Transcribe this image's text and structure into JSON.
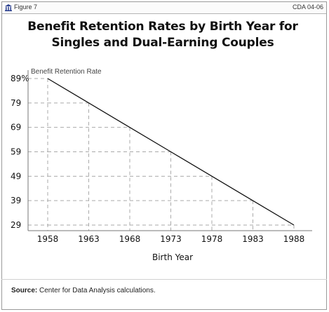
{
  "header": {
    "figure_label": "Figure 7",
    "doc_code": "CDA 04-06"
  },
  "title_line1": "Benefit Retention Rates by Birth Year for",
  "title_line2": "Singles and Dual-Earning Couples",
  "source": {
    "label": "Source:",
    "text": "Center for Data Analysis calculations."
  },
  "chart_data": {
    "type": "line",
    "title": "Benefit Retention Rates by Birth Year for Singles and Dual-Earning Couples",
    "xlabel": "Birth Year",
    "ylabel": "Benefit Retention Rate",
    "x": [
      1958,
      1963,
      1968,
      1973,
      1978,
      1983,
      1988
    ],
    "x_tick_labels": [
      "1958",
      "1963",
      "1968",
      "1973",
      "1978",
      "1983",
      "1988"
    ],
    "y_ticks": [
      29,
      39,
      49,
      59,
      69,
      79,
      89
    ],
    "y_tick_labels": [
      "29",
      "39",
      "49",
      "59",
      "69",
      "79",
      "89%"
    ],
    "series": [
      {
        "values": [
          89,
          79,
          69,
          59,
          49,
          39,
          29
        ]
      }
    ],
    "xlim": [
      1958,
      1988
    ],
    "ylim": [
      29,
      89
    ],
    "grid": true,
    "grid_style": "dashed",
    "line_color": "#111111",
    "grid_color": "#aaaaaa"
  }
}
